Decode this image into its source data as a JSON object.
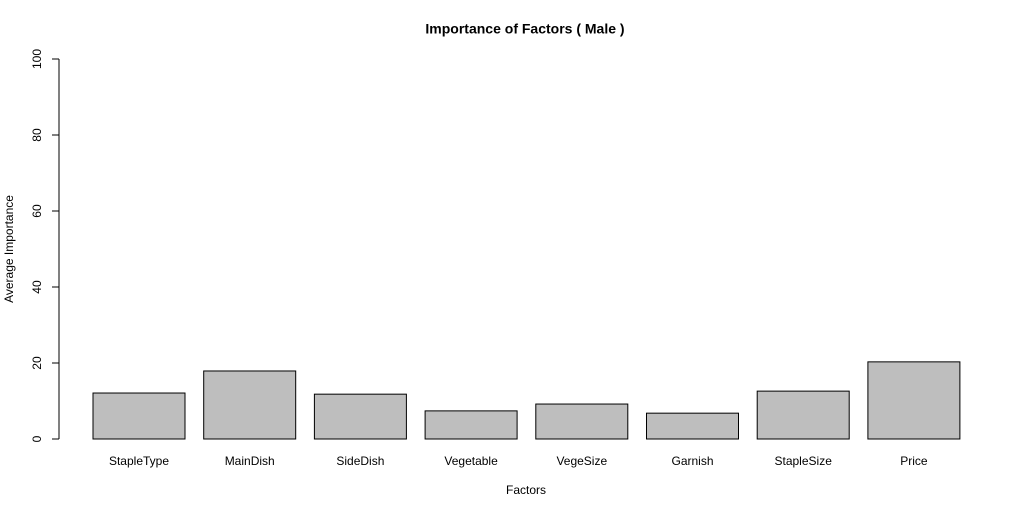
{
  "chart_data": {
    "type": "bar",
    "title": "Importance of Factors ( Male )",
    "x_label": "Factors",
    "y_label": "Average Importance",
    "categories": [
      "StapleType",
      "MainDish",
      "SideDish",
      "Vegetable",
      "VegeSize",
      "Garnish",
      "StapleSize",
      "Price"
    ],
    "values": [
      12.1,
      17.9,
      11.8,
      7.4,
      9.2,
      6.8,
      12.6,
      20.3
    ],
    "color": "#bebebe",
    "ylim": [
      0,
      100
    ],
    "yticks": [
      0,
      20,
      40,
      60,
      80,
      100
    ],
    "grid": false
  }
}
